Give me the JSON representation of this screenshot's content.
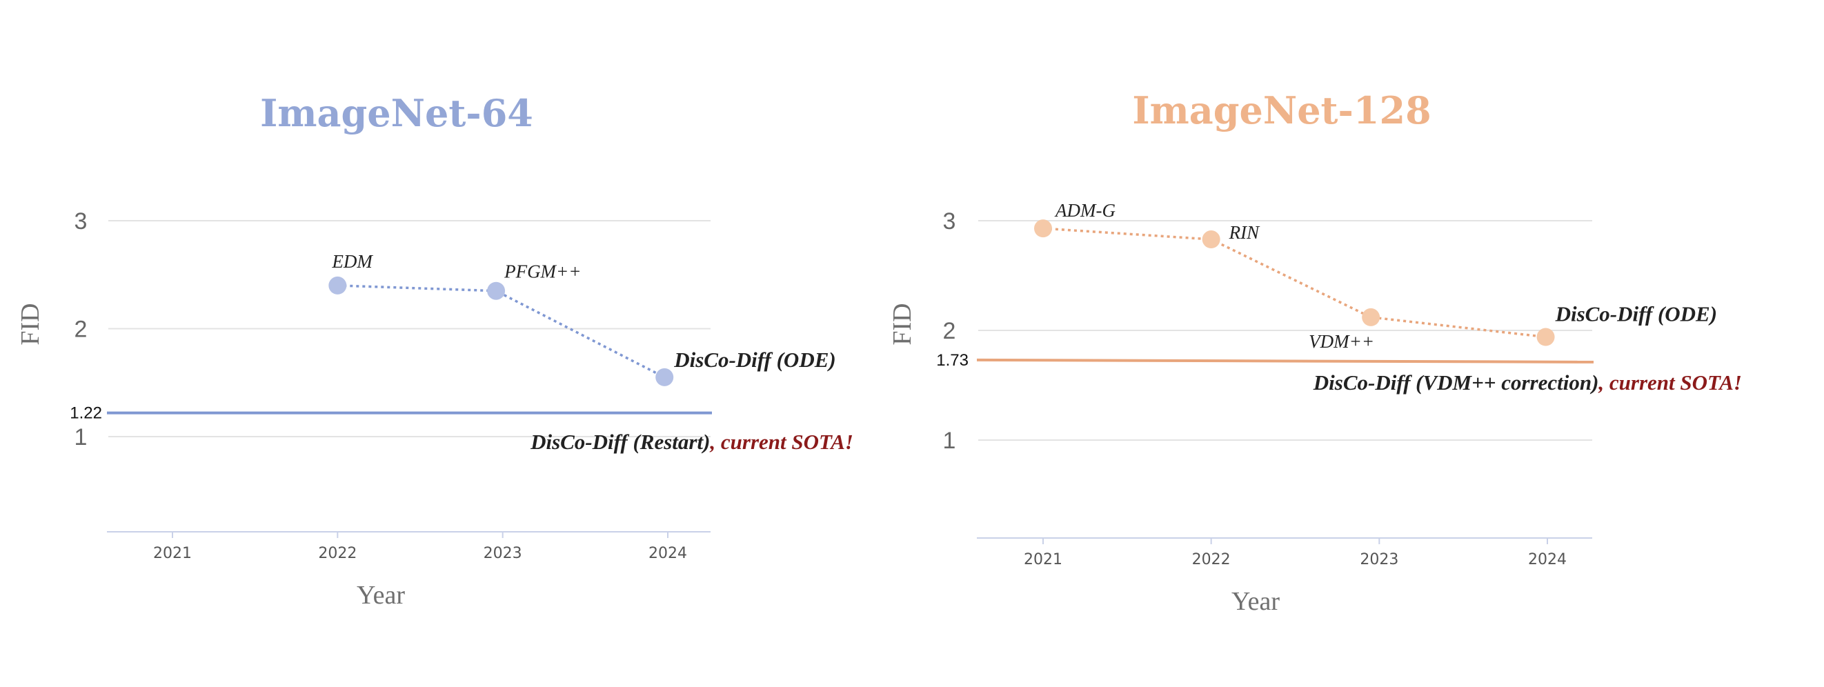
{
  "chart_data": [
    {
      "type": "line",
      "title": "ImageNet-64",
      "title_color": "#93a6d6",
      "xlabel": "Year",
      "ylabel": "FID",
      "x_ticks": [
        "2021",
        "2022",
        "2023",
        "2024"
      ],
      "y_ticks": [
        "1",
        "2",
        "3"
      ],
      "xlim": [
        2020.6,
        2024.25
      ],
      "ylim": [
        0.1,
        3.0
      ],
      "grid": true,
      "marker_color": "#b3c0e5",
      "line_color": "#7f97d2",
      "points": [
        {
          "x": 2022,
          "y": 2.4,
          "label": "EDM"
        },
        {
          "x": 2022.96,
          "y": 2.35,
          "label": "PFGM++"
        },
        {
          "x": 2023.98,
          "y": 1.55,
          "label": "DisCo-Diff (ODE)"
        }
      ],
      "reference": {
        "value": 1.22,
        "value_label": "1.22",
        "color": "#7f97d2",
        "label": "DisCo-Diff (Restart)",
        "sota_label": ", current SOTA!",
        "sota_color": "#8b1a1a"
      }
    },
    {
      "type": "line",
      "title": "ImageNet-128",
      "title_color": "#efb38a",
      "xlabel": "Year",
      "ylabel": "FID",
      "x_ticks": [
        "2021",
        "2022",
        "2023",
        "2024"
      ],
      "y_ticks": [
        "1",
        "2",
        "3"
      ],
      "xlim": [
        2020.6,
        2024.25
      ],
      "ylim": [
        0.1,
        3.0
      ],
      "grid": true,
      "marker_color": "#f5c9a8",
      "line_color": "#e8a57c",
      "points": [
        {
          "x": 2021,
          "y": 2.93,
          "label": "ADM-G"
        },
        {
          "x": 2022,
          "y": 2.83,
          "label": "RIN"
        },
        {
          "x": 2022.95,
          "y": 2.12,
          "label": "VDM++"
        },
        {
          "x": 2023.99,
          "y": 1.94,
          "label": "DisCo-Diff (ODE)"
        }
      ],
      "reference": {
        "value": 1.73,
        "value_label": "1.73",
        "color": "#e8a57c",
        "label": "DisCo-Diff (VDM++ correction)",
        "sota_label": ", current SOTA!",
        "sota_color": "#8b1a1a"
      }
    }
  ]
}
